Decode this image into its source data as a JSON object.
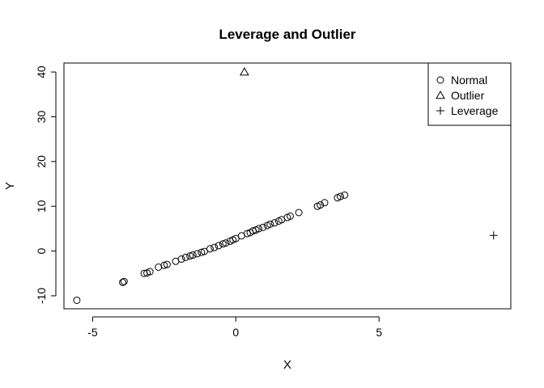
{
  "chart_data": {
    "type": "scatter",
    "title": "Leverage and Outlier",
    "xlabel": "X",
    "ylabel": "Y",
    "xlim": [
      -6.0,
      9.6
    ],
    "ylim": [
      -12.9,
      42.0
    ],
    "xticks": [
      -5,
      0,
      5
    ],
    "xtick_labels": [
      "-5",
      "0",
      "5"
    ],
    "yticks": [
      -10,
      0,
      10,
      20,
      30,
      40
    ],
    "ytick_labels": [
      "-10",
      "0",
      "10",
      "20",
      "30",
      "40"
    ],
    "grid": false,
    "legend_position": "top-right",
    "series": [
      {
        "name": "Normal",
        "marker": "circle",
        "points": [
          [
            -5.55,
            -11.0
          ],
          [
            -3.95,
            -7.0
          ],
          [
            -3.9,
            -6.8
          ],
          [
            -3.2,
            -5.0
          ],
          [
            -3.1,
            -4.9
          ],
          [
            -3.0,
            -4.6
          ],
          [
            -2.7,
            -3.6
          ],
          [
            -2.5,
            -3.2
          ],
          [
            -2.4,
            -3.0
          ],
          [
            -2.1,
            -2.3
          ],
          [
            -1.9,
            -1.8
          ],
          [
            -1.75,
            -1.4
          ],
          [
            -1.6,
            -1.1
          ],
          [
            -1.5,
            -0.9
          ],
          [
            -1.35,
            -0.6
          ],
          [
            -1.2,
            -0.3
          ],
          [
            -1.1,
            -0.1
          ],
          [
            -0.9,
            0.5
          ],
          [
            -0.75,
            0.8
          ],
          [
            -0.6,
            1.2
          ],
          [
            -0.45,
            1.6
          ],
          [
            -0.35,
            1.8
          ],
          [
            -0.2,
            2.2
          ],
          [
            -0.1,
            2.5
          ],
          [
            0.0,
            2.8
          ],
          [
            0.2,
            3.4
          ],
          [
            0.4,
            3.9
          ],
          [
            0.5,
            4.1
          ],
          [
            0.6,
            4.5
          ],
          [
            0.7,
            4.7
          ],
          [
            0.8,
            5.0
          ],
          [
            0.95,
            5.3
          ],
          [
            1.1,
            5.7
          ],
          [
            1.2,
            6.0
          ],
          [
            1.35,
            6.3
          ],
          [
            1.5,
            6.7
          ],
          [
            1.6,
            7.0
          ],
          [
            1.8,
            7.5
          ],
          [
            1.9,
            7.8
          ],
          [
            2.2,
            8.6
          ],
          [
            2.85,
            10.0
          ],
          [
            2.95,
            10.3
          ],
          [
            3.1,
            10.8
          ],
          [
            3.55,
            11.9
          ],
          [
            3.65,
            12.2
          ],
          [
            3.8,
            12.5
          ]
        ]
      },
      {
        "name": "Outlier",
        "marker": "triangle",
        "points": [
          [
            0.3,
            40.0
          ]
        ]
      },
      {
        "name": "Leverage",
        "marker": "plus",
        "points": [
          [
            9.0,
            3.5
          ]
        ]
      }
    ]
  }
}
